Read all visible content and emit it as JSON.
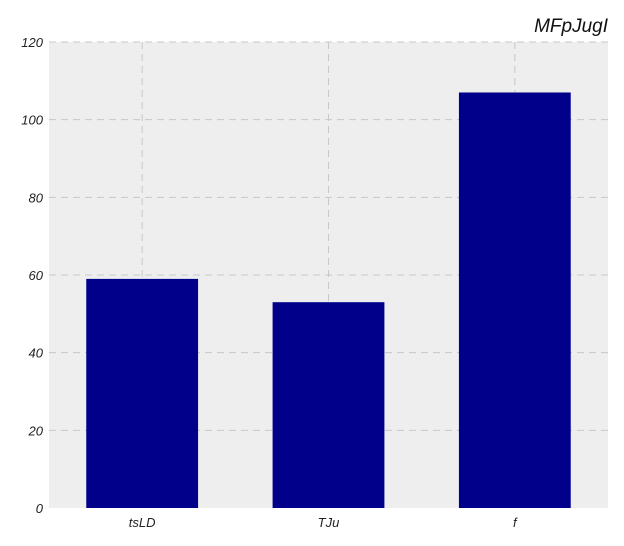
{
  "chart_data": {
    "type": "bar",
    "title": "MFpJugI",
    "categories": [
      "tsLD",
      "TJu",
      "f"
    ],
    "values": [
      59,
      53,
      107
    ],
    "xlabel": "",
    "ylabel": "",
    "ylim": [
      0,
      120
    ],
    "yticks": [
      0,
      20,
      40,
      60,
      80,
      100,
      120
    ],
    "yticks_text": [
      "0",
      "20",
      "40",
      "60",
      "80",
      "100",
      "120"
    ],
    "grid": true,
    "colors": {
      "bar": "#00008b",
      "plot_bg": "#eeeeee",
      "grid": "#c8c8c8"
    }
  }
}
